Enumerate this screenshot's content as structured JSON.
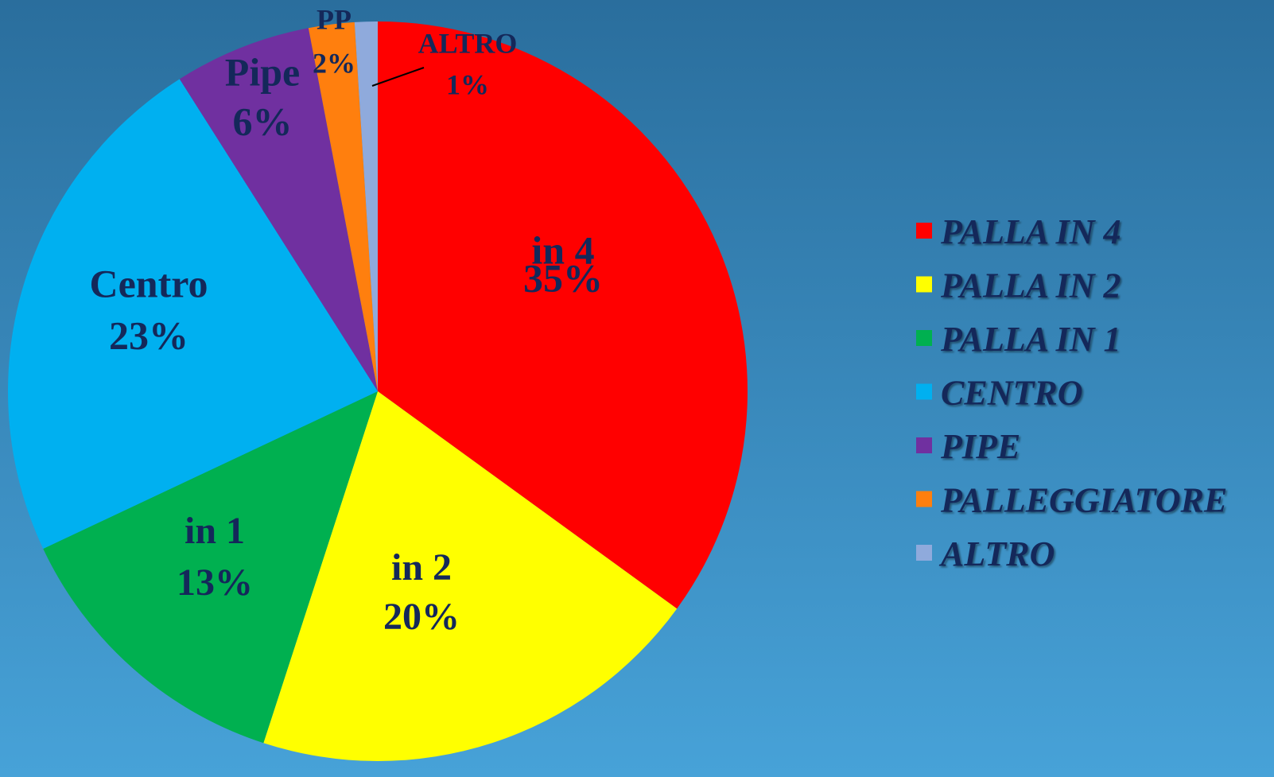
{
  "chart_data": {
    "type": "pie",
    "categories": [
      "PALLA IN 4",
      "PALLA IN 2",
      "PALLA IN 1",
      "CENTRO",
      "PIPE",
      "PALLEGGIATORE",
      "ALTRO"
    ],
    "data_labels": [
      "in 4",
      "in 2",
      "in 1",
      "Centro",
      "Pipe",
      "PP",
      "ALTRO"
    ],
    "values": [
      35,
      20,
      13,
      23,
      6,
      2,
      1
    ],
    "value_labels": [
      "35%",
      "20%",
      "13%",
      "23%",
      "6%",
      "2%",
      "1%"
    ],
    "colors": [
      "#ff0000",
      "#ffff00",
      "#00b050",
      "#00b0f0",
      "#7030a0",
      "#ff7f0e",
      "#8faadc"
    ],
    "legend": "right"
  }
}
